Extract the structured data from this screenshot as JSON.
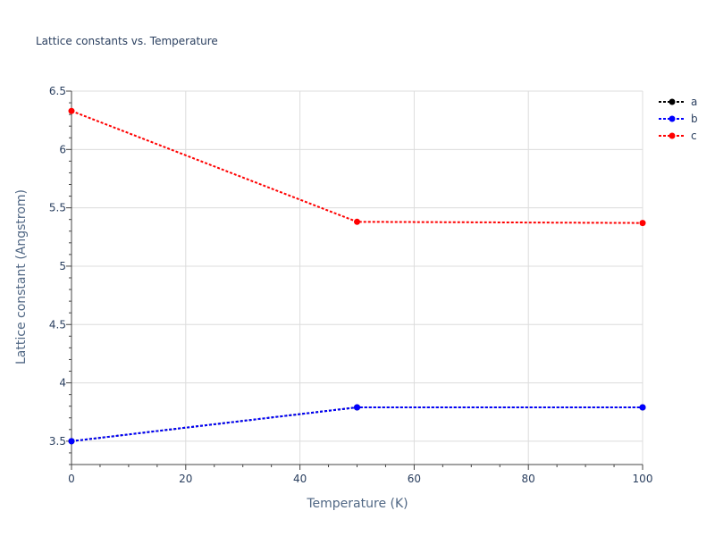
{
  "chart_data": {
    "type": "line",
    "title": "Lattice constants vs. Temperature",
    "xlabel": "Temperature (K)",
    "ylabel": "Lattice constant (Angstrom)",
    "xlim": [
      0,
      100
    ],
    "ylim": [
      3.3,
      6.5
    ],
    "xticks": [
      0,
      20,
      40,
      60,
      80,
      100
    ],
    "yticks": [
      3.5,
      4,
      4.5,
      5,
      5.5,
      6,
      6.5
    ],
    "grid": true,
    "legend_position": "top-right",
    "x": [
      0,
      50,
      100
    ],
    "series": [
      {
        "name": "a",
        "color": "#000000",
        "values": [
          3.5,
          3.79,
          3.79
        ]
      },
      {
        "name": "b",
        "color": "#0000ff",
        "values": [
          3.5,
          3.79,
          3.79
        ]
      },
      {
        "name": "c",
        "color": "#ff0000",
        "values": [
          6.33,
          5.38,
          5.37
        ]
      }
    ]
  }
}
